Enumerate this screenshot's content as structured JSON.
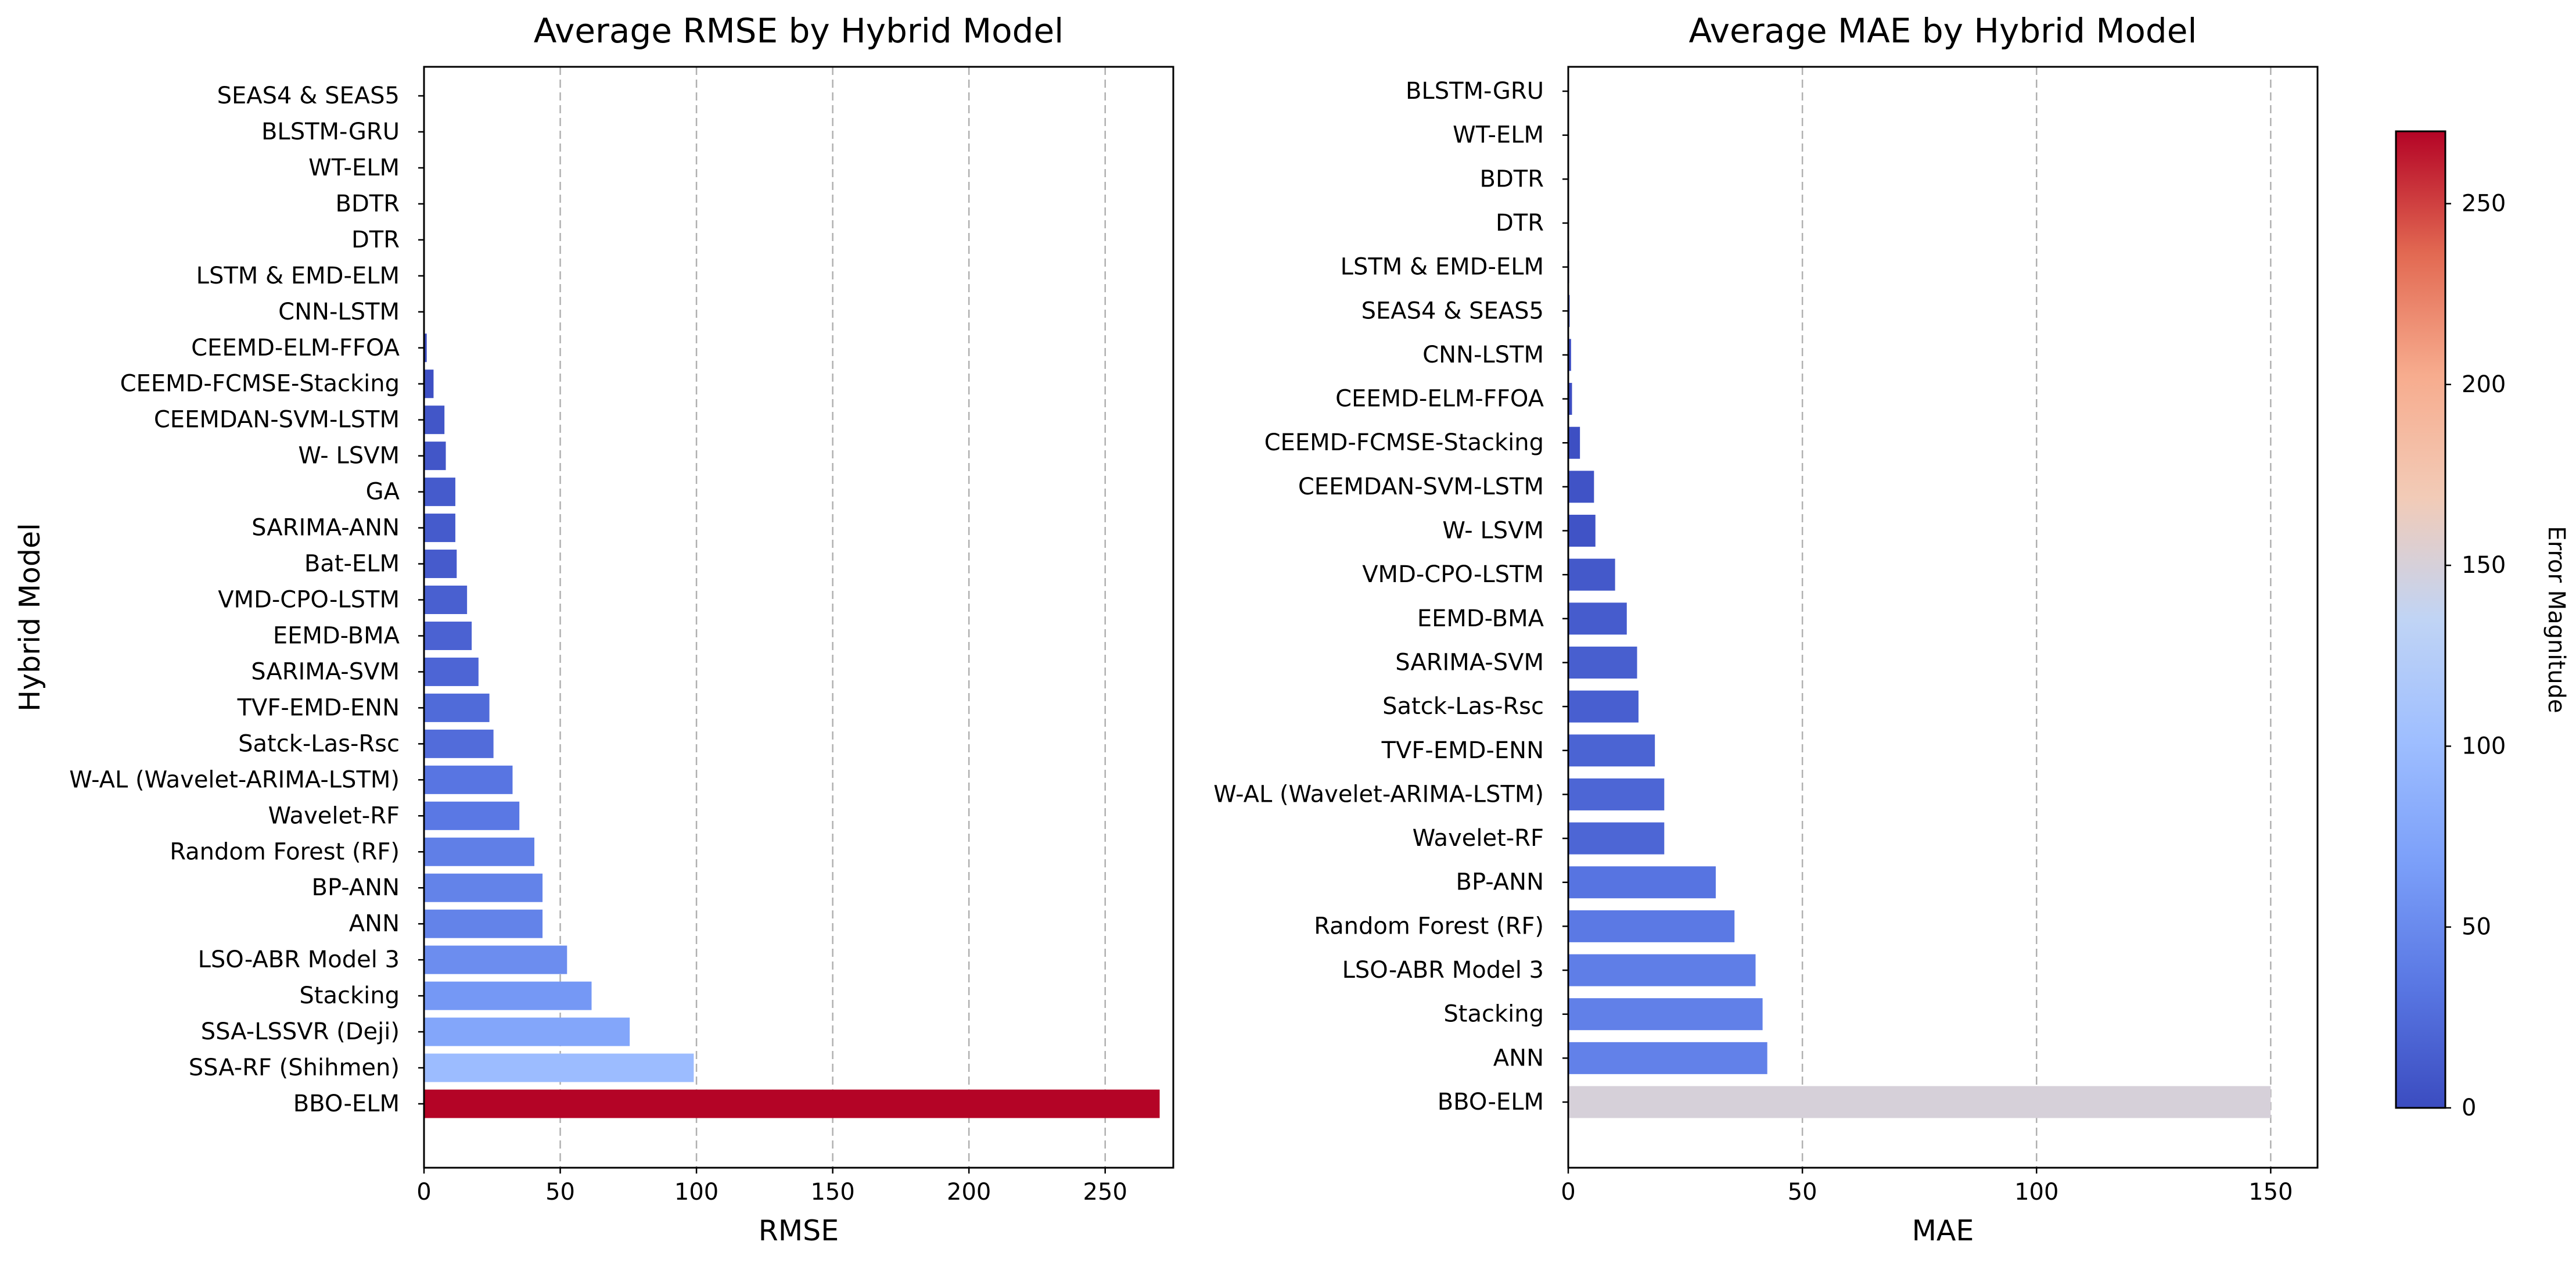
{
  "chart_data": [
    {
      "type": "bar",
      "orientation": "horizontal",
      "title": "Average RMSE by Hybrid Model",
      "xlabel": "RMSE",
      "ylabel": "Hybrid Model",
      "xlim": [
        0,
        275
      ],
      "xticks": [
        0,
        50,
        100,
        150,
        200,
        250
      ],
      "grid": "x",
      "categories": [
        "BBO-ELM",
        "SSA-RF (Shihmen)",
        "SSA-LSSVR (Deji)",
        "Stacking",
        "LSO-ABR Model 3",
        "ANN",
        "BP-ANN",
        "Random Forest (RF)",
        "Wavelet-RF",
        "W-AL (Wavelet-ARIMA-LSTM)",
        "Satck-Las-Rsc",
        "TVF-EMD-ENN",
        "SARIMA-SVM",
        "EEMD-BMA",
        "VMD-CPO-LSTM",
        "Bat-ELM",
        "SARIMA-ANN",
        "GA",
        "W- LSVM",
        "CEEMDAN-SVM-LSTM",
        "CEEMD-FCMSE-Stacking",
        "CEEMD-ELM-FFOA",
        "CNN-LSTM",
        "LSTM & EMD-ELM",
        "DTR ",
        "BDTR",
        "WT-ELM",
        "BLSTM-GRU",
        "SEAS4 & SEAS5"
      ],
      "values": [
        270,
        99,
        75.5,
        61.5,
        52.5,
        43.5,
        43.5,
        40.5,
        35,
        32.5,
        25.5,
        24,
        20,
        17.5,
        15.8,
        12,
        11.5,
        11.5,
        8,
        7.5,
        3.5,
        1,
        0.3,
        0.2,
        0.1,
        0.1,
        0.1,
        0.05,
        0.05
      ]
    },
    {
      "type": "bar",
      "orientation": "horizontal",
      "title": "Average MAE by Hybrid Model",
      "xlabel": "MAE",
      "ylabel": "",
      "xlim": [
        0,
        160
      ],
      "xticks": [
        0,
        50,
        100,
        150
      ],
      "grid": "x",
      "categories": [
        "BBO-ELM",
        "ANN",
        "Stacking",
        "LSO-ABR Model 3",
        "Random Forest (RF)",
        "BP-ANN",
        "Wavelet-RF",
        "W-AL (Wavelet-ARIMA-LSTM)",
        "TVF-EMD-ENN",
        "Satck-Las-Rsc",
        "SARIMA-SVM",
        "EEMD-BMA",
        "VMD-CPO-LSTM",
        "W- LSVM",
        "CEEMDAN-SVM-LSTM",
        "CEEMD-FCMSE-Stacking",
        "CEEMD-ELM-FFOA",
        "CNN-LSTM",
        "SEAS4 & SEAS5",
        "LSTM & EMD-ELM",
        "DTR ",
        "BDTR",
        "WT-ELM",
        "BLSTM-GRU"
      ],
      "values": [
        150,
        42.5,
        41.5,
        40,
        35.5,
        31.5,
        20.5,
        20.5,
        18.5,
        15,
        14.7,
        12.5,
        10,
        5.8,
        5.5,
        2.5,
        0.8,
        0.6,
        0.3,
        0.2,
        0.1,
        0.1,
        0.05,
        0.05
      ]
    }
  ],
  "colorbar": {
    "label": "Error Magnitude",
    "colormap": "coolwarm",
    "range": [
      0,
      270
    ],
    "ticks": [
      0,
      50,
      100,
      150,
      200,
      250
    ]
  }
}
